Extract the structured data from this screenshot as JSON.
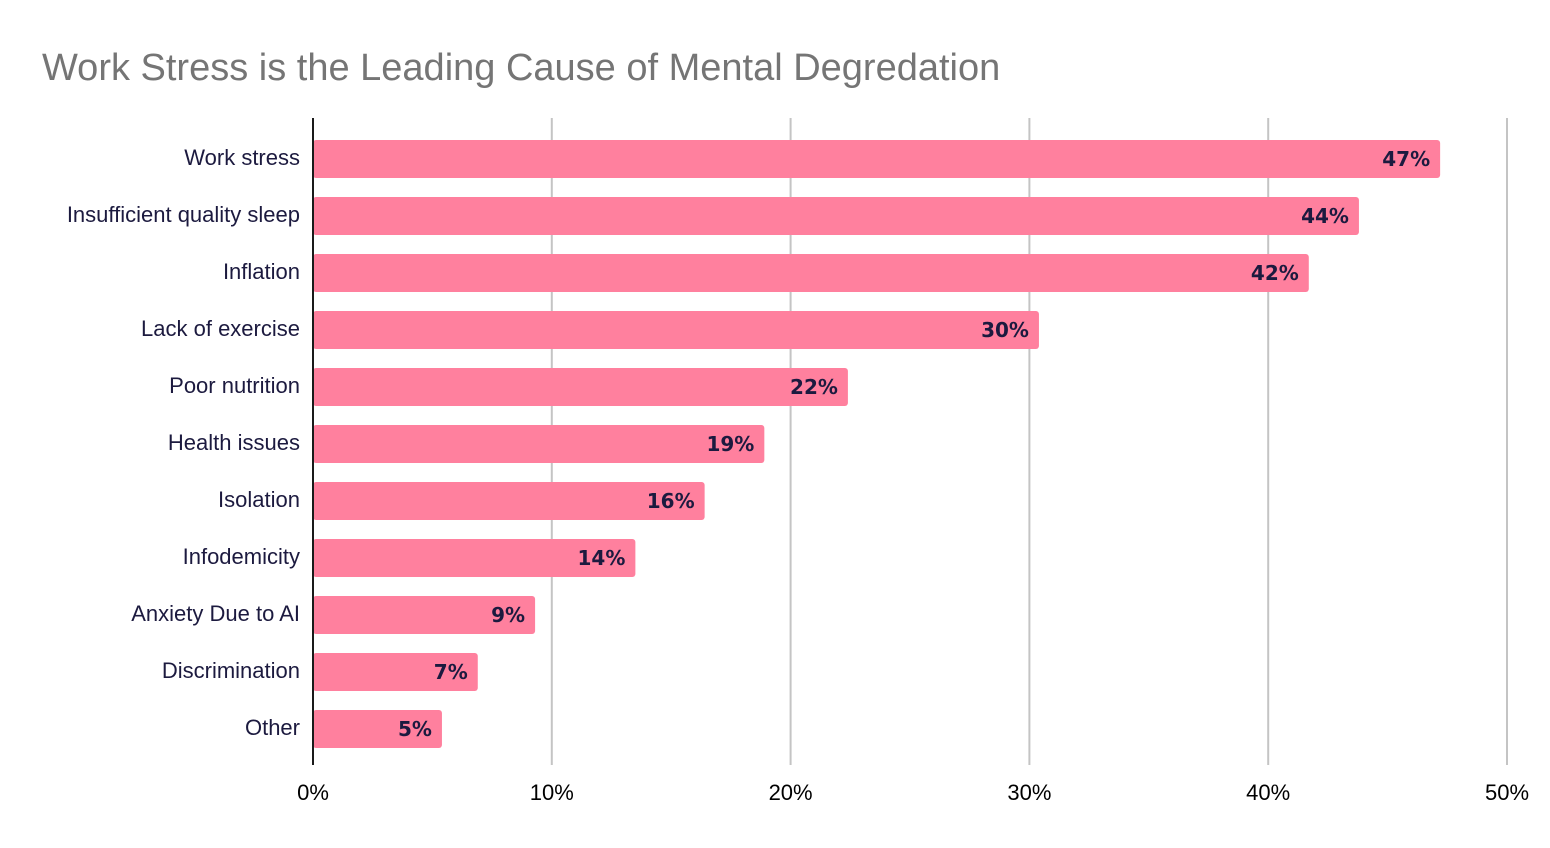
{
  "chart_data": {
    "type": "bar",
    "orientation": "horizontal",
    "title": "Work Stress is the Leading Cause of Mental Degredation",
    "xlabel": "",
    "ylabel": "",
    "categories": [
      "Work stress",
      "Insufficient quality sleep",
      "Inflation",
      "Lack of exercise",
      "Poor nutrition",
      "Health issues",
      "Isolation",
      "Infodemicity",
      "Anxiety Due to AI",
      "Discrimination",
      "Other"
    ],
    "values": [
      47.2,
      43.8,
      41.7,
      30.4,
      22.4,
      18.9,
      16.4,
      13.5,
      9.3,
      6.9,
      5.4
    ],
    "data_labels": [
      "47%",
      "44%",
      "42%",
      "30%",
      "22%",
      "19%",
      "16%",
      "14%",
      "9%",
      "7%",
      "5%"
    ],
    "xlim": [
      0,
      50
    ],
    "x_ticks": [
      0,
      10,
      20,
      30,
      40,
      50
    ],
    "x_tick_labels": [
      "0%",
      "10%",
      "20%",
      "30%",
      "40%",
      "50%"
    ],
    "grid": true,
    "legend": "none",
    "colors": {
      "bar": "#ff809e",
      "title": "#757575",
      "label": "#1c1a3f",
      "grid": "#c4c4c4"
    }
  }
}
